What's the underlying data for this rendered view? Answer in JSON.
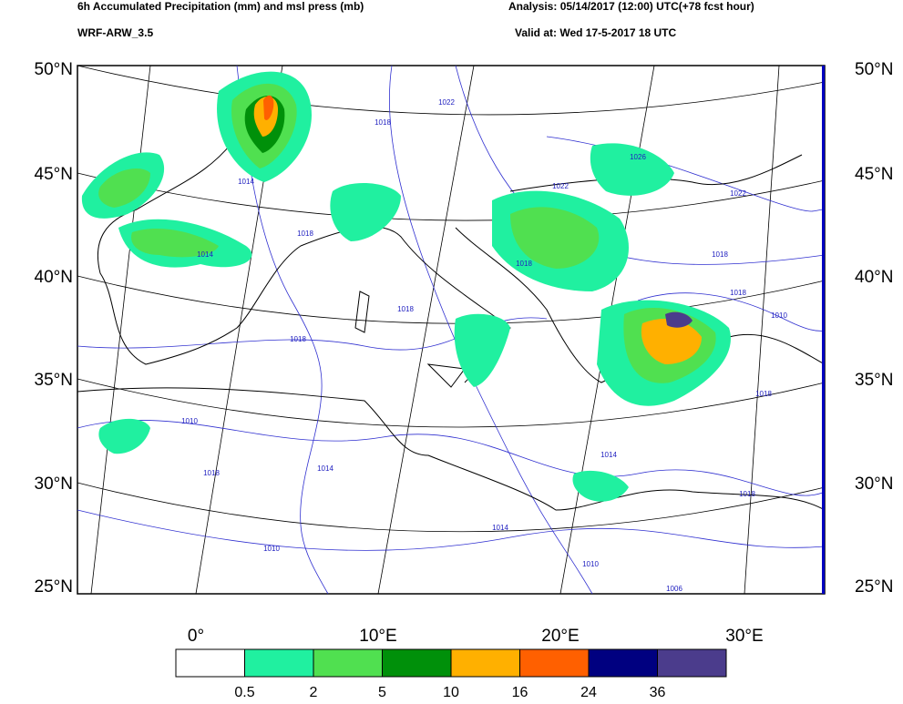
{
  "header": {
    "title": "6h Accumulated Precipitation (mm) and msl press (mb)",
    "model": "WRF-ARW_3.5",
    "analysis": "Analysis: 05/14/2017 (12:00) UTC(+78 fcst hour)",
    "valid": "Valid at: Wed 17-5-2017  18 UTC"
  },
  "map": {
    "lat_labels": [
      "50°N",
      "45°N",
      "40°N",
      "35°N",
      "30°N",
      "25°N"
    ],
    "lon_labels": [
      "0°",
      "10°E",
      "20°E",
      "30°E"
    ],
    "isobar_labels": [
      "1018",
      "1022",
      "1014",
      "1018",
      "1014",
      "1018",
      "1018",
      "1018",
      "1010",
      "1018",
      "1014",
      "1014",
      "1010",
      "1010",
      "1014",
      "1018",
      "1006",
      "1022",
      "1026",
      "1022",
      "1018",
      "1018",
      "1010",
      "1018"
    ]
  },
  "legend": {
    "colors": [
      "#ffffff",
      "#20f0a0",
      "#50e050",
      "#00900a",
      "#ffb000",
      "#ff6000",
      "#000080",
      "#4b3c8c"
    ],
    "bounds": [
      0.5,
      2,
      5,
      10,
      16,
      24,
      36
    ]
  }
}
